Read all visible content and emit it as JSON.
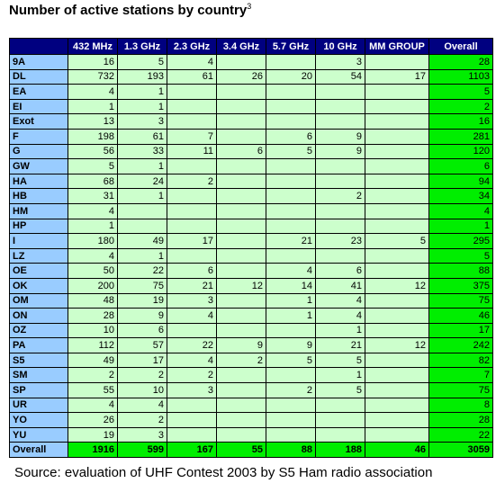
{
  "header": {
    "title": "Number of active stations by country",
    "title_superscript": "3"
  },
  "table": {
    "columns": [
      "432 MHz",
      "1.3 GHz",
      "2.3 GHz",
      "3.4 GHz",
      "5.7 GHz",
      "10 GHz",
      "MM GROUP",
      "Overall"
    ],
    "rows": [
      {
        "label": "9A",
        "values": [
          16,
          5,
          4,
          null,
          null,
          3,
          null,
          28
        ]
      },
      {
        "label": "DL",
        "values": [
          732,
          193,
          61,
          26,
          20,
          54,
          17,
          1103
        ]
      },
      {
        "label": "EA",
        "values": [
          4,
          1,
          null,
          null,
          null,
          null,
          null,
          5
        ]
      },
      {
        "label": "EI",
        "values": [
          1,
          1,
          null,
          null,
          null,
          null,
          null,
          2
        ]
      },
      {
        "label": "Exot",
        "values": [
          13,
          3,
          null,
          null,
          null,
          null,
          null,
          16
        ]
      },
      {
        "label": "F",
        "values": [
          198,
          61,
          7,
          null,
          6,
          9,
          null,
          281
        ]
      },
      {
        "label": "G",
        "values": [
          56,
          33,
          11,
          6,
          5,
          9,
          null,
          120
        ]
      },
      {
        "label": "GW",
        "values": [
          5,
          1,
          null,
          null,
          null,
          null,
          null,
          6
        ]
      },
      {
        "label": "HA",
        "values": [
          68,
          24,
          2,
          null,
          null,
          null,
          null,
          94
        ]
      },
      {
        "label": "HB",
        "values": [
          31,
          1,
          null,
          null,
          null,
          2,
          null,
          34
        ]
      },
      {
        "label": "HM",
        "values": [
          4,
          null,
          null,
          null,
          null,
          null,
          null,
          4
        ]
      },
      {
        "label": "HP",
        "values": [
          1,
          null,
          null,
          null,
          null,
          null,
          null,
          1
        ]
      },
      {
        "label": "I",
        "values": [
          180,
          49,
          17,
          null,
          21,
          23,
          5,
          295
        ]
      },
      {
        "label": "LZ",
        "values": [
          4,
          1,
          null,
          null,
          null,
          null,
          null,
          5
        ]
      },
      {
        "label": "OE",
        "values": [
          50,
          22,
          6,
          null,
          4,
          6,
          null,
          88
        ]
      },
      {
        "label": "OK",
        "values": [
          200,
          75,
          21,
          12,
          14,
          41,
          12,
          375
        ]
      },
      {
        "label": "OM",
        "values": [
          48,
          19,
          3,
          null,
          1,
          4,
          null,
          75
        ]
      },
      {
        "label": "ON",
        "values": [
          28,
          9,
          4,
          null,
          1,
          4,
          null,
          46
        ]
      },
      {
        "label": "OZ",
        "values": [
          10,
          6,
          null,
          null,
          null,
          1,
          null,
          17
        ]
      },
      {
        "label": "PA",
        "values": [
          112,
          57,
          22,
          9,
          9,
          21,
          12,
          242
        ]
      },
      {
        "label": "S5",
        "values": [
          49,
          17,
          4,
          2,
          5,
          5,
          null,
          82
        ]
      },
      {
        "label": "SM",
        "values": [
          2,
          2,
          2,
          null,
          null,
          1,
          null,
          7
        ]
      },
      {
        "label": "SP",
        "values": [
          55,
          10,
          3,
          null,
          2,
          5,
          null,
          75
        ]
      },
      {
        "label": "UR",
        "values": [
          4,
          4,
          null,
          null,
          null,
          null,
          null,
          8
        ]
      },
      {
        "label": "YO",
        "values": [
          26,
          2,
          null,
          null,
          null,
          null,
          null,
          28
        ]
      },
      {
        "label": "YU",
        "values": [
          19,
          3,
          null,
          null,
          null,
          null,
          null,
          22
        ]
      },
      {
        "label": "Overall",
        "values": [
          1916,
          599,
          167,
          55,
          88,
          188,
          46,
          3059
        ]
      }
    ]
  },
  "footer": {
    "source": "Source: evaluation of UHF Contest 2003 by S5 Ham radio association"
  }
}
